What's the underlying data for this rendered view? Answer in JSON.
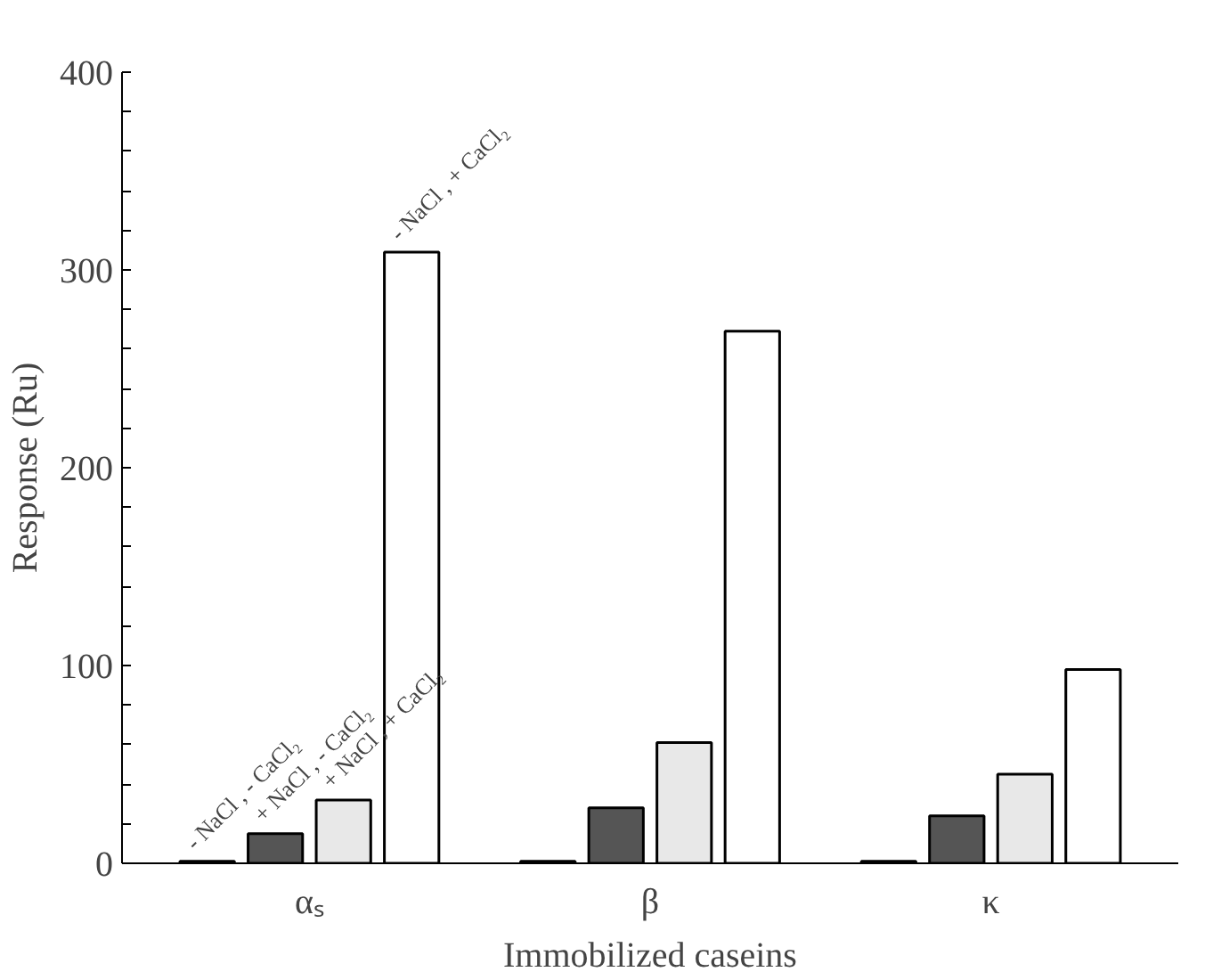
{
  "chart_data": {
    "type": "bar",
    "xlabel": "Immobilized caseins",
    "ylabel": "Response (Ru)",
    "categories": [
      "αₛ",
      "β",
      "κ"
    ],
    "series": [
      {
        "name": "- NaCl , - CaCl₂",
        "color": "#000000",
        "values": [
          1,
          1,
          1
        ]
      },
      {
        "name": "+ NaCl , - CaCl₂",
        "color": "#555555",
        "values": [
          15,
          28,
          24
        ]
      },
      {
        "name": "+ NaCl , + CaCl₂",
        "color": "#e8e8e8",
        "values": [
          32,
          61,
          45
        ]
      },
      {
        "name": "- NaCl , + CaCl₂",
        "color": "#ffffff",
        "values": [
          309,
          269,
          98
        ]
      }
    ],
    "ylim": [
      0,
      400
    ],
    "yticks": [
      0,
      {
        "value": 20,
        "label": null
      },
      {
        "value": 40,
        "label": null
      },
      {
        "value": 60,
        "label": null
      },
      {
        "value": 80,
        "label": null
      },
      100,
      {
        "value": 120,
        "label": null
      },
      {
        "value": 140,
        "label": null
      },
      {
        "value": 160,
        "label": null
      },
      {
        "value": 180,
        "label": null
      },
      200,
      {
        "value": 220,
        "label": null
      },
      {
        "value": 240,
        "label": null
      },
      {
        "value": 260,
        "label": null
      },
      {
        "value": 280,
        "label": null
      },
      300,
      {
        "value": 320,
        "label": null
      },
      {
        "value": 340,
        "label": null
      },
      {
        "value": 360,
        "label": null
      },
      {
        "value": 380,
        "label": null
      },
      400
    ],
    "grid": false,
    "legend": false
  }
}
